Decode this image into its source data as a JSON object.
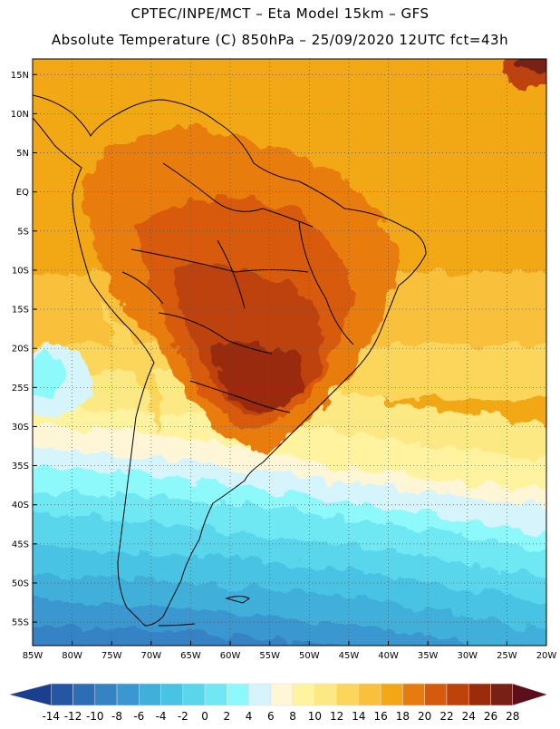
{
  "title_line1": "CPTEC/INPE/MCT –  Eta Model 15km – GFS",
  "title_line2": "Absolute Temperature (C) 850hPa – 25/09/2020 12UTC fct=43h",
  "map": {
    "lat_labels": [
      "15N",
      "10N",
      "5N",
      "EQ",
      "5S",
      "10S",
      "15S",
      "20S",
      "25S",
      "30S",
      "35S",
      "40S",
      "45S",
      "50S",
      "55S"
    ],
    "lon_labels": [
      "85W",
      "80W",
      "75W",
      "70W",
      "65W",
      "60W",
      "55W",
      "50W",
      "45W",
      "40W",
      "35W",
      "30W",
      "25W",
      "20W"
    ],
    "lon_range": [
      -85,
      -20
    ],
    "lat_range": [
      -58,
      17
    ],
    "grid": "dotted",
    "field": "temperature_850hPa"
  },
  "colorbar": {
    "labels": [
      "-14",
      "-12",
      "-10",
      "-8",
      "-6",
      "-4",
      "-2",
      "0",
      "2",
      "4",
      "6",
      "8",
      "10",
      "12",
      "14",
      "16",
      "18",
      "20",
      "22",
      "24",
      "26",
      "28"
    ],
    "colors": [
      "#1b3f8f",
      "#2556a3",
      "#2d6db4",
      "#3683c4",
      "#3a97cf",
      "#3fb0da",
      "#48c3e3",
      "#5ad6ec",
      "#6fe8f4",
      "#8ef9fb",
      "#d6f4fb",
      "#fff6d8",
      "#fff3a0",
      "#fde984",
      "#fbd65a",
      "#f8c03b",
      "#f2a814",
      "#e87b0e",
      "#d75a0c",
      "#be420b",
      "#9a2b0b",
      "#782016",
      "#5c0f1a"
    ]
  }
}
